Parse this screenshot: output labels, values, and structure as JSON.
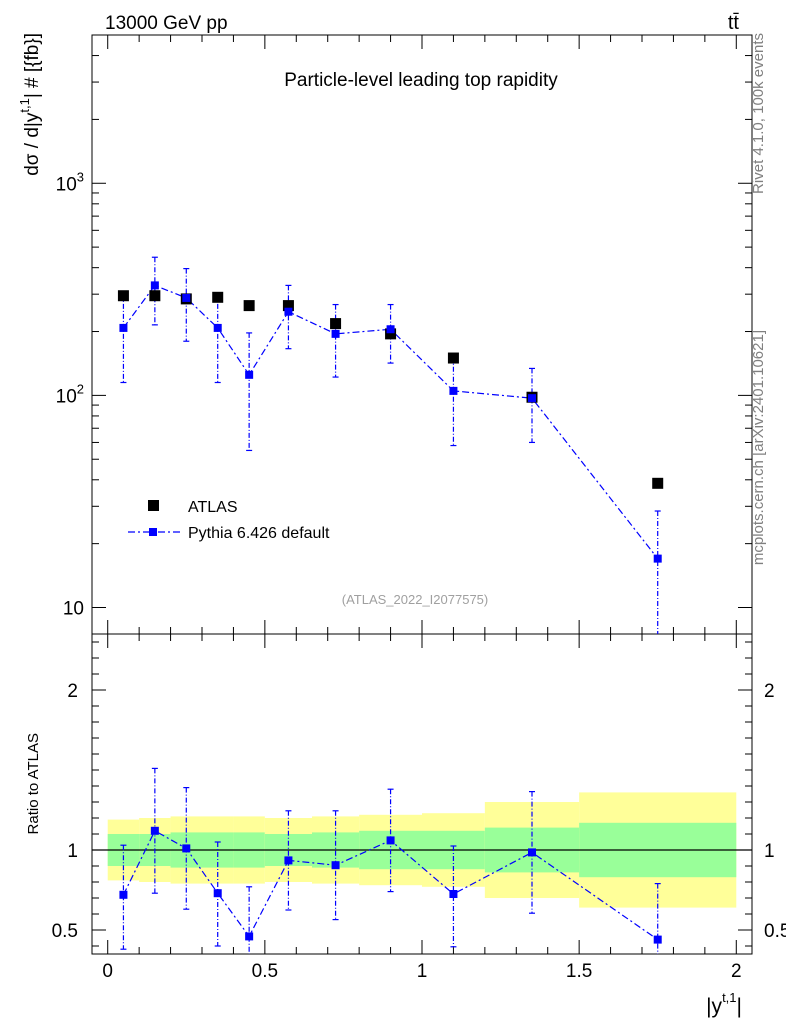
{
  "chart_data": {
    "type": "scatter",
    "header_left": "13000 GeV pp",
    "header_right": "tt̄",
    "title": "Particle-level leading top rapidity",
    "ylabel_main": "dσ / d|y^{t,1}| # [{fb}]",
    "ylabel_main_parts": [
      "dσ / d|y",
      "t,1",
      "| # [{fb}]"
    ],
    "ylabel_ratio": "Ratio to ATLAS",
    "xlabel": "|y^{t,1}|",
    "xlabel_parts": [
      "|y",
      "t,1",
      "|"
    ],
    "side_top": "Rivet 4.1.0,  100k events",
    "side_bottom": "mcplots.cern.ch [arXiv:2401.10621]",
    "analysis_id": "(ATLAS_2022_I2077575)",
    "x_range": [
      -0.05,
      2.05
    ],
    "y_range_main": [
      7.5,
      5000
    ],
    "y_scale_main": "log",
    "y_range_ratio": [
      0.35,
      2.35
    ],
    "x_ticks": [
      0,
      0.5,
      1,
      1.5,
      2
    ],
    "x_tick_labels": [
      "0",
      "0.5",
      "1",
      "1.5",
      "2"
    ],
    "main_ticks": [
      {
        "value": 1000,
        "label_base": "10",
        "label_exp": "3"
      },
      {
        "value": 100,
        "label_base": "10",
        "label_exp": "2"
      },
      {
        "value": 10,
        "label_base": "10",
        "label_exp": ""
      }
    ],
    "ratio_ticks": [
      {
        "value": 2,
        "label": "2"
      },
      {
        "value": 1,
        "label": "1"
      },
      {
        "value": 0.5,
        "label": "0.5"
      }
    ],
    "bin_edges": [
      0,
      0.1,
      0.2,
      0.3,
      0.4,
      0.5,
      0.65,
      0.8,
      1.0,
      1.2,
      1.5,
      2.0
    ],
    "series": [
      {
        "name": "ATLAS",
        "color": "#000000",
        "x": [
          0.05,
          0.15,
          0.25,
          0.35,
          0.45,
          0.575,
          0.725,
          0.9,
          1.1,
          1.35,
          1.75
        ],
        "y": [
          295,
          295,
          285,
          290,
          265,
          265,
          218,
          195,
          150,
          98,
          38.5
        ],
        "rel_unc_inner": [
          0.1,
          0.1,
          0.11,
          0.11,
          0.11,
          0.1,
          0.11,
          0.12,
          0.12,
          0.14,
          0.17
        ],
        "rel_unc_outer": [
          0.19,
          0.2,
          0.21,
          0.21,
          0.21,
          0.2,
          0.21,
          0.22,
          0.23,
          0.3,
          0.36
        ]
      },
      {
        "name": "Pythia 6.426 default",
        "color": "#0000ff",
        "x": [
          0.05,
          0.15,
          0.25,
          0.35,
          0.45,
          0.575,
          0.725,
          0.9,
          1.1,
          1.35,
          1.75
        ],
        "y": [
          208,
          330,
          288,
          208,
          125,
          248,
          195,
          205,
          105,
          97,
          17
        ],
        "yerr_low": [
          93,
          115,
          108,
          93,
          70,
          82,
          73,
          63,
          47,
          37,
          10
        ],
        "yerr_high": [
          93,
          118,
          108,
          93,
          72,
          82,
          73,
          63,
          47,
          37,
          11.5
        ],
        "ratio": [
          0.72,
          1.12,
          1.01,
          0.73,
          0.46,
          0.935,
          0.905,
          1.06,
          0.725,
          0.985,
          0.44
        ],
        "ratio_err_low": [
          0.34,
          0.39,
          0.38,
          0.33,
          0.27,
          0.31,
          0.34,
          0.32,
          0.33,
          0.38,
          0.27
        ],
        "ratio_err_high": [
          0.31,
          0.39,
          0.38,
          0.32,
          0.31,
          0.31,
          0.34,
          0.32,
          0.3,
          0.38,
          0.35
        ]
      }
    ],
    "colors": {
      "inner_band": "#99ff99",
      "outer_band": "#ffff99",
      "reference_line": "#000000",
      "side_text": "#808080"
    }
  }
}
